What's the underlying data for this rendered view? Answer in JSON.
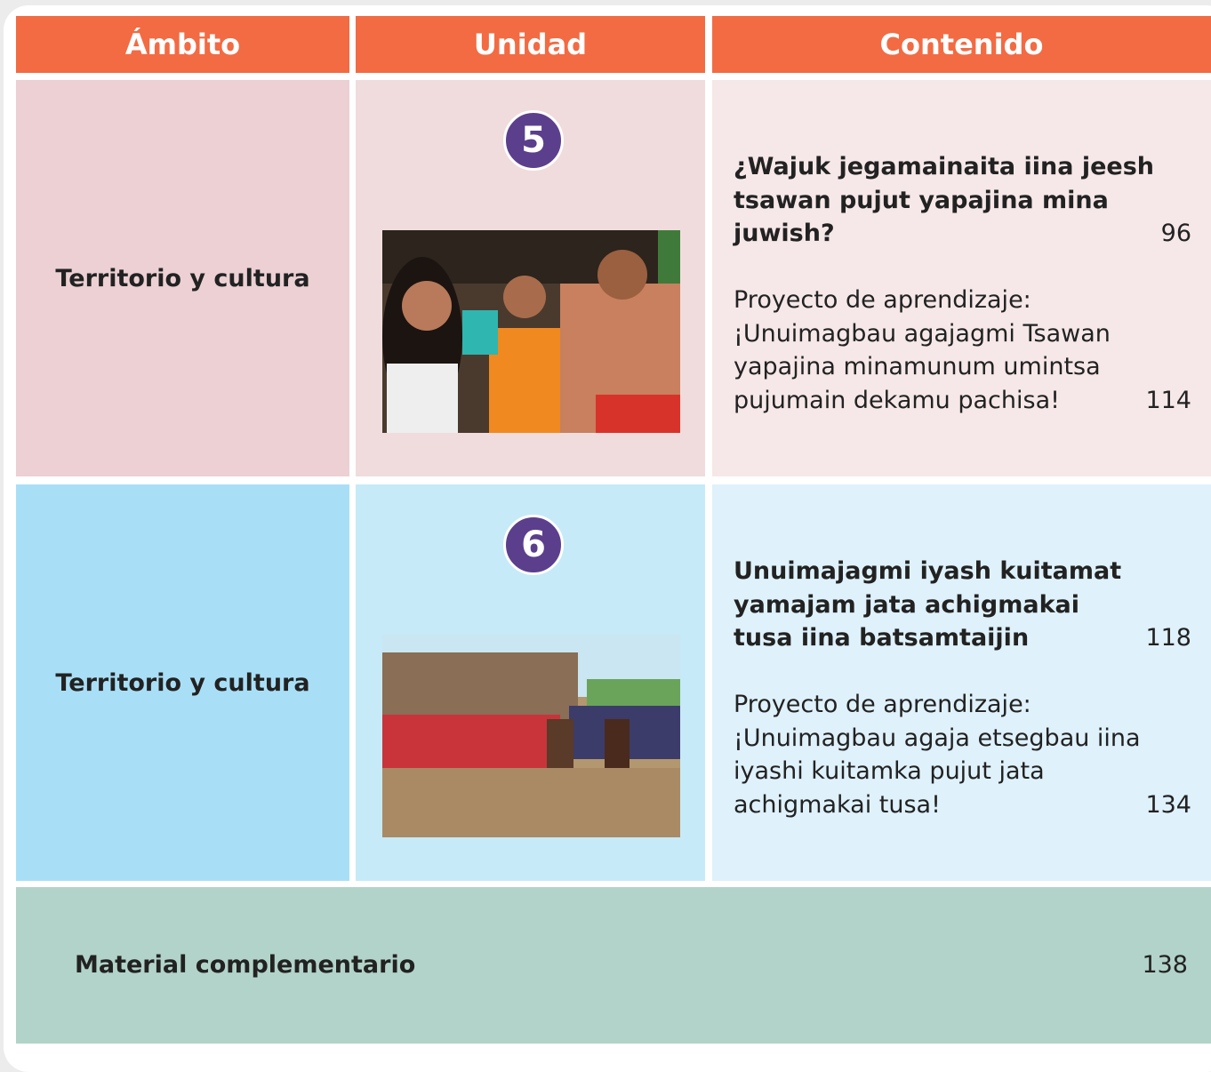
{
  "header": {
    "columns": [
      "Ámbito",
      "Unidad",
      "Contenido"
    ]
  },
  "rows": [
    {
      "ambito": "Territorio y cultura",
      "unit": "5",
      "title_lines": [
        "¿Wajuk jegamainaita iina jeesh",
        "tsawan pujut yapajina mina",
        "juwish?"
      ],
      "title_page": "96",
      "project_lines": [
        "Proyecto de aprendizaje:",
        "¡Unuimagbau agajagmi Tsawan",
        "yapajina minamunum umintsa",
        "pujumain dekamu pachisa!"
      ],
      "project_page": "114"
    },
    {
      "ambito": "Territorio y cultura",
      "unit": "6",
      "title_lines": [
        "Unuimajagmi iyash kuitamat",
        "yamajam jata achigmakai",
        "tusa iina batsamtaijin"
      ],
      "title_page": "118",
      "project_lines": [
        "Proyecto de aprendizaje:",
        "¡Unuimagbau agaja etsegbau iina",
        "iyashi kuitamka pujut jata",
        "achigmakai tusa!"
      ],
      "project_page": "134"
    }
  ],
  "footer": {
    "label": "Material complementario",
    "page": "138"
  }
}
